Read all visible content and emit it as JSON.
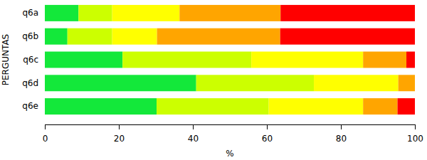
{
  "chart_data": {
    "type": "bar",
    "orientation": "horizontal",
    "stacked": true,
    "grid": false,
    "xlabel": "%",
    "ylabel": "PERGUNTAS",
    "categories": [
      "q6a",
      "q6b",
      "q6c",
      "q6d",
      "q6e"
    ],
    "xlim": [
      0,
      100
    ],
    "xticks": [
      0,
      20,
      40,
      60,
      80,
      100
    ],
    "series": [
      {
        "color": "#13e83a",
        "values": [
          9.1,
          6.1,
          21,
          40.9,
          30.2
        ]
      },
      {
        "color": "#ccff00",
        "values": [
          9.1,
          12.1,
          34.8,
          31.8,
          30.3
        ]
      },
      {
        "color": "#ffff00",
        "values": [
          18.2,
          12.1,
          30.2,
          22.8,
          25.5
        ]
      },
      {
        "color": "#ffa500",
        "values": [
          27.3,
          33.3,
          11.7,
          4.5,
          9.3
        ]
      },
      {
        "color": "#ff0000",
        "values": [
          36.3,
          36.4,
          2.3,
          0,
          4.7
        ]
      }
    ]
  }
}
